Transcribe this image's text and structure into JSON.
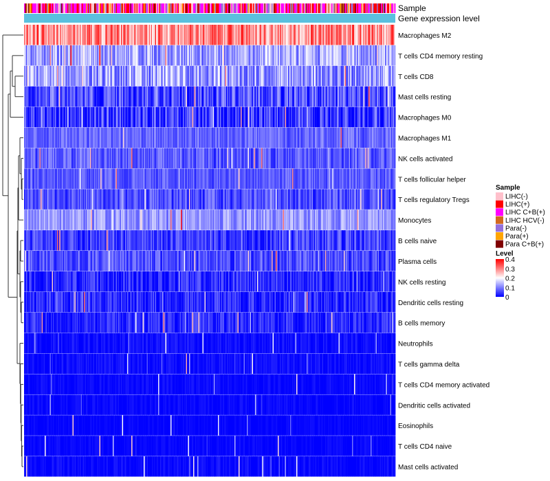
{
  "chart_data": {
    "type": "heatmap",
    "annotation_tracks": [
      "Sample",
      "Gene expression level"
    ],
    "rows": [
      {
        "label": "Macrophages M2",
        "mean": 0.29,
        "spread": 0.09
      },
      {
        "label": "T cells CD4 memory resting",
        "mean": 0.13,
        "spread": 0.07
      },
      {
        "label": "T cells CD8",
        "mean": 0.12,
        "spread": 0.08
      },
      {
        "label": "Mast cells resting",
        "mean": 0.06,
        "spread": 0.07
      },
      {
        "label": "Macrophages M0",
        "mean": 0.04,
        "spread": 0.08
      },
      {
        "label": "Macrophages M1",
        "mean": 0.08,
        "spread": 0.04
      },
      {
        "label": "NK cells activated",
        "mean": 0.07,
        "spread": 0.05
      },
      {
        "label": "T cells follicular helper",
        "mean": 0.07,
        "spread": 0.04
      },
      {
        "label": "T cells regulatory  Tregs",
        "mean": 0.06,
        "spread": 0.05
      },
      {
        "label": "Monocytes",
        "mean": 0.12,
        "spread": 0.05
      },
      {
        "label": "B cells naive",
        "mean": 0.05,
        "spread": 0.05
      },
      {
        "label": "Plasma cells",
        "mean": 0.06,
        "spread": 0.05
      },
      {
        "label": "NK cells resting",
        "mean": 0.03,
        "spread": 0.05
      },
      {
        "label": "Dendritic cells resting",
        "mean": 0.03,
        "spread": 0.05
      },
      {
        "label": "B cells memory",
        "mean": 0.03,
        "spread": 0.04
      },
      {
        "label": "Neutrophils",
        "mean": 0.01,
        "spread": 0.02
      },
      {
        "label": "T cells gamma delta",
        "mean": 0.01,
        "spread": 0.02
      },
      {
        "label": "T cells CD4 memory activated",
        "mean": 0.005,
        "spread": 0.015
      },
      {
        "label": "Dendritic cells activated",
        "mean": 0.005,
        "spread": 0.015
      },
      {
        "label": "Eosinophils",
        "mean": 0.003,
        "spread": 0.01
      },
      {
        "label": "T cells CD4 naive",
        "mean": 0.004,
        "spread": 0.012
      },
      {
        "label": "Mast cells activated",
        "mean": 0.006,
        "spread": 0.02
      }
    ],
    "n_samples": 360,
    "sample_legend": {
      "title": "Sample",
      "items": [
        {
          "label": "LIHC(-)",
          "color": "#ffc0cb"
        },
        {
          "label": "LIHC(+)",
          "color": "#ff0000"
        },
        {
          "label": "LIHC C+B(+)",
          "color": "#ff00ff"
        },
        {
          "label": "LIHC HCV(-)",
          "color": "#d2691e"
        },
        {
          "label": "Para(-)",
          "color": "#9370db"
        },
        {
          "label": "Para(+)",
          "color": "#ffa500"
        },
        {
          "label": "Para C+B(+)",
          "color": "#800000"
        }
      ]
    },
    "level_legend": {
      "title": "Level",
      "ticks": [
        "0.4",
        "0.3",
        "0.2",
        "0.1",
        "0"
      ],
      "tick_values": [
        0.4,
        0.3,
        0.2,
        0.1,
        0
      ],
      "range": [
        0,
        0.4
      ],
      "colors": [
        "#0000ff",
        "#ffffff",
        "#ff0000"
      ]
    },
    "gene_expression_color": "#5bc0de"
  }
}
